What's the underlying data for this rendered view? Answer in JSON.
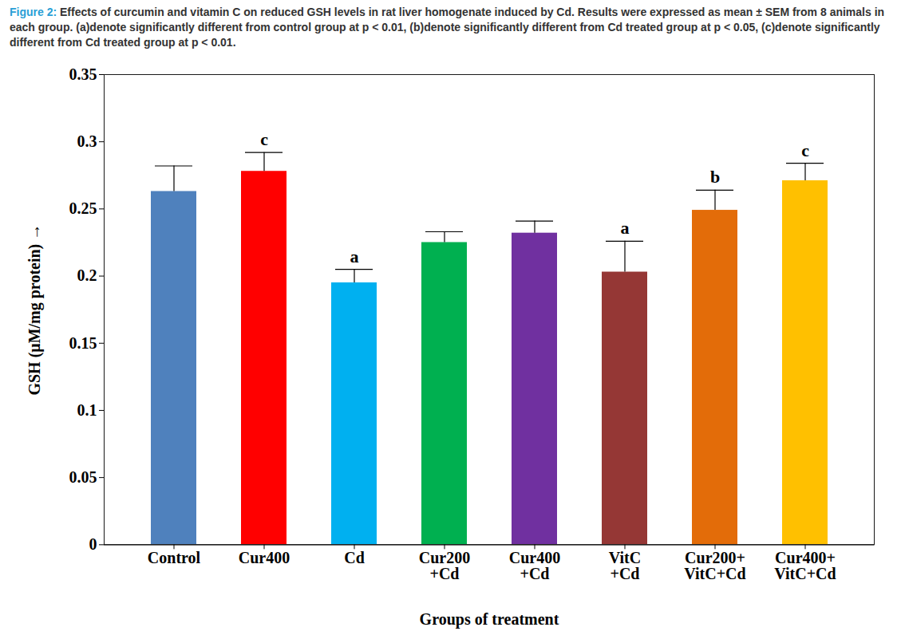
{
  "chart_data": {
    "type": "bar",
    "title": "Figure 2:",
    "caption": "Effects of curcumin and vitamin C on reduced GSH levels in rat liver homogenate induced by Cd. Results were expressed as mean ± SEM from 8 animals in each group. (a)denote significantly different from control group at p < 0.01, (b)denote significantly different from Cd treated group at p < 0.05, (c)denote significantly different from Cd treated group at p < 0.01.",
    "x_label": "Groups of treatment",
    "y_label": "GSH (μM/mg protein)",
    "categories": [
      "Control",
      "Cur400",
      "Cd",
      "Cur200\n+Cd",
      "Cur400\n+Cd",
      "VitC\n+Cd",
      "Cur200+\nVitC+Cd",
      "Cur400+\nVitC+Cd"
    ],
    "values": [
      0.263,
      0.278,
      0.195,
      0.225,
      0.232,
      0.203,
      0.249,
      0.271
    ],
    "sem": [
      0.019,
      0.014,
      0.01,
      0.008,
      0.009,
      0.023,
      0.015,
      0.013
    ],
    "significance": [
      null,
      "c",
      "a",
      null,
      null,
      "a",
      "b",
      "c"
    ],
    "colors": [
      "#4f81bd",
      "#ff0000",
      "#00b0f0",
      "#00b050",
      "#7030a0",
      "#953735",
      "#e36c09",
      "#ffc000"
    ],
    "ylim": [
      0,
      0.35
    ],
    "yticks": [
      0,
      0.05,
      0.1,
      0.15,
      0.2,
      0.25,
      0.3,
      0.35
    ],
    "grid": false
  }
}
